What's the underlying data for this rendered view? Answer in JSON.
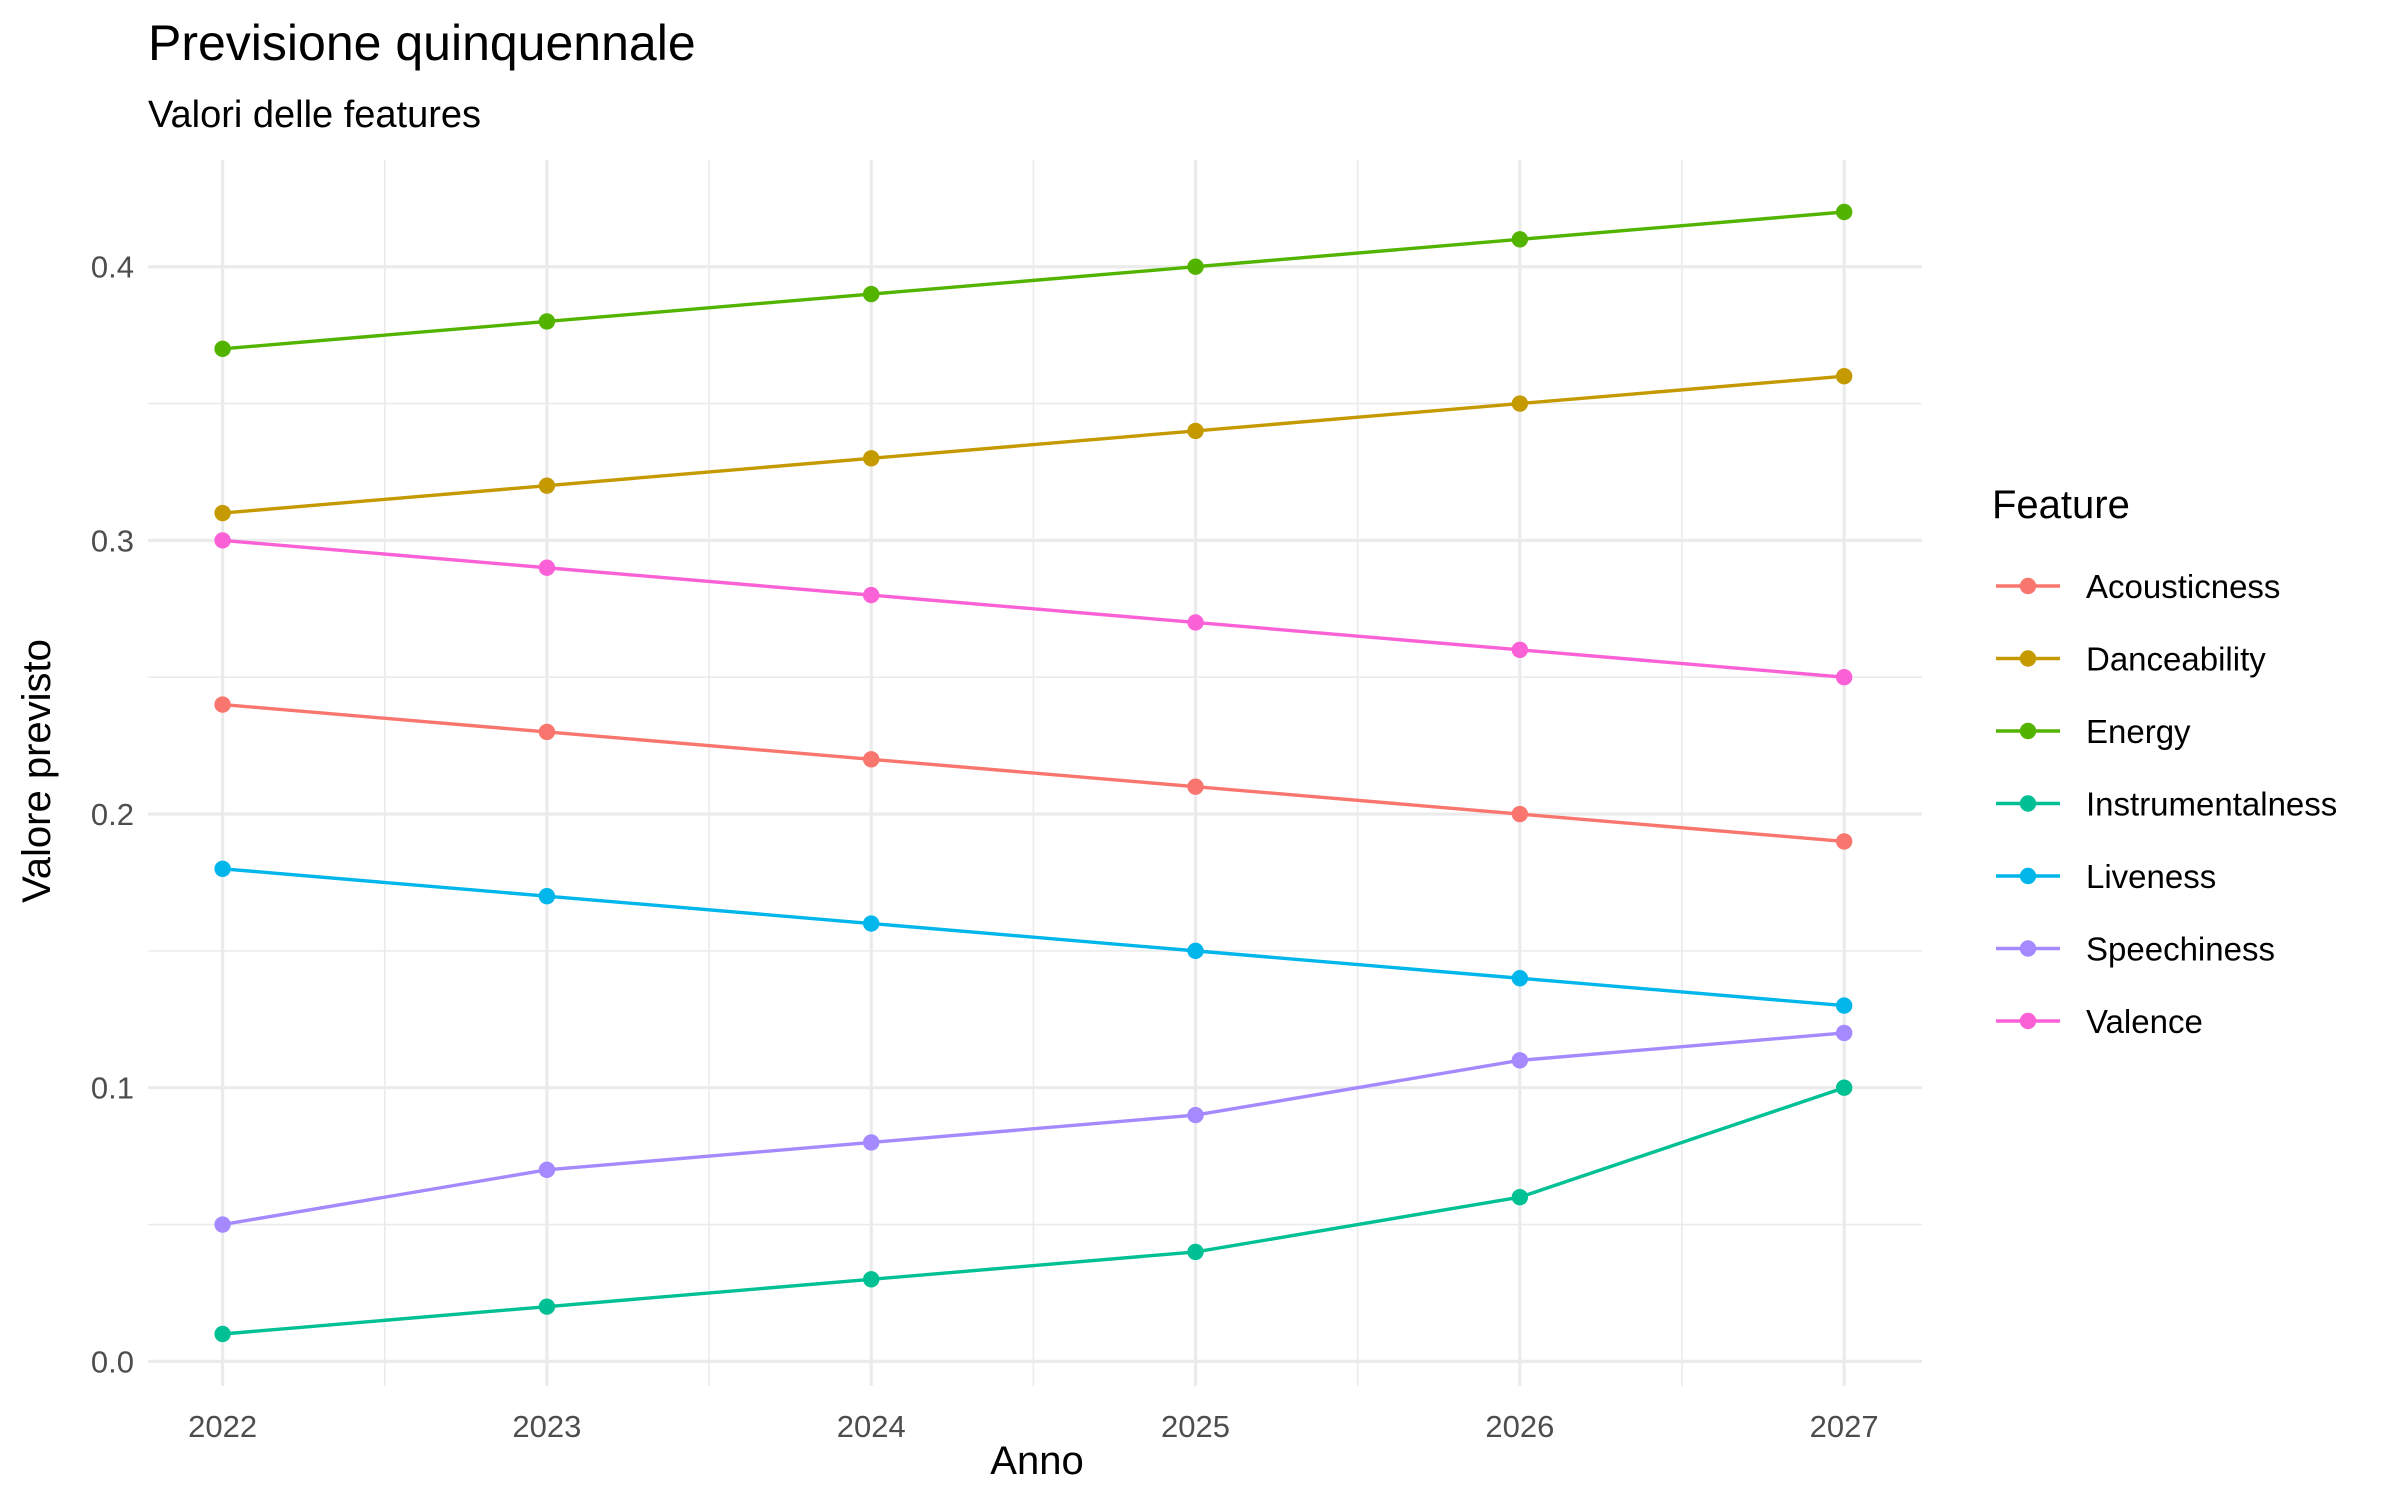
{
  "chart_data": {
    "type": "line",
    "title": "Previsione quinquennale",
    "subtitle": "Valori delle features",
    "xlabel": "Anno",
    "ylabel": "Valore previsto",
    "x": [
      2022,
      2023,
      2024,
      2025,
      2026,
      2027
    ],
    "x_tick_labels": [
      "2022",
      "2023",
      "2024",
      "2025",
      "2026",
      "2027"
    ],
    "xlim": [
      2021.77,
      2027.24
    ],
    "ylim": [
      -0.009,
      0.439
    ],
    "y_ticks": [
      0.0,
      0.1,
      0.2,
      0.3,
      0.4
    ],
    "y_tick_labels": [
      "0.0",
      "0.1",
      "0.2",
      "0.3",
      "0.4"
    ],
    "grid": true,
    "legend": {
      "title": "Feature",
      "placement": "right"
    },
    "series": [
      {
        "name": "Acousticness",
        "color": "#F8766D",
        "values": [
          0.24,
          0.23,
          0.22,
          0.21,
          0.2,
          0.19
        ]
      },
      {
        "name": "Danceability",
        "color": "#C49A00",
        "values": [
          0.31,
          0.32,
          0.33,
          0.34,
          0.35,
          0.36
        ]
      },
      {
        "name": "Energy",
        "color": "#53B400",
        "values": [
          0.37,
          0.38,
          0.39,
          0.4,
          0.41,
          0.42
        ]
      },
      {
        "name": "Instrumentalness",
        "color": "#00C094",
        "values": [
          0.01,
          0.02,
          0.03,
          0.04,
          0.06,
          0.1
        ]
      },
      {
        "name": "Liveness",
        "color": "#00B6EB",
        "values": [
          0.18,
          0.17,
          0.16,
          0.15,
          0.14,
          0.13
        ]
      },
      {
        "name": "Speechiness",
        "color": "#A58AFF",
        "values": [
          0.05,
          0.07,
          0.08,
          0.09,
          0.11,
          0.12
        ]
      },
      {
        "name": "Valence",
        "color": "#FB61D7",
        "values": [
          0.3,
          0.29,
          0.28,
          0.27,
          0.26,
          0.25
        ]
      }
    ]
  }
}
